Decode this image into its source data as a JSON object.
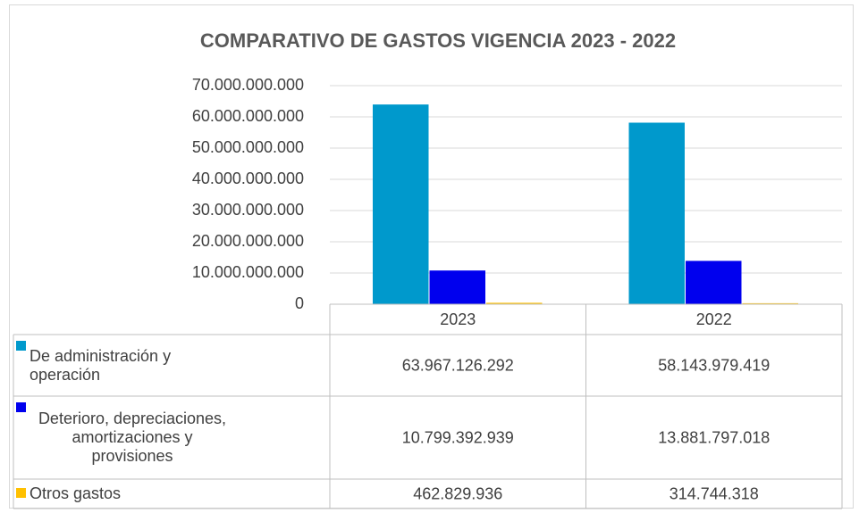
{
  "chart_data": {
    "type": "bar",
    "title": "COMPARATIVO DE GASTOS VIGENCIA 2023 - 2022",
    "categories": [
      "2023",
      "2022"
    ],
    "series": [
      {
        "name": "De administración y operación",
        "color": "#0099cc",
        "values": [
          63967126292,
          58143979419
        ],
        "value_labels": [
          "63.967.126.292",
          "58.143.979.419"
        ]
      },
      {
        "name": "Deterioro, depreciaciones, amortizaciones y provisiones",
        "color": "#0000ee",
        "values": [
          10799392939,
          13881797018
        ],
        "value_labels": [
          "10.799.392.939",
          "13.881.797.018"
        ]
      },
      {
        "name": "Otros gastos",
        "color": "#ffc000",
        "values": [
          462829936,
          314744318
        ],
        "value_labels": [
          "462.829.936",
          "314.744.318"
        ]
      }
    ],
    "ylim": [
      0,
      70000000000
    ],
    "yticks": [
      0,
      {
        "value": 10000000000,
        "label": "10.000.000.000"
      },
      {
        "value": 20000000000,
        "label": "20.000.000.000"
      },
      {
        "value": 30000000000,
        "label": "30.000.000.000"
      },
      {
        "value": 40000000000,
        "label": "40.000.000.000"
      },
      {
        "value": 50000000000,
        "label": "50.000.000.000"
      },
      {
        "value": 60000000000,
        "label": "60.000.000.000"
      },
      {
        "value": 70000000000,
        "label": "70.000.000.000"
      }
    ],
    "grid": true
  }
}
